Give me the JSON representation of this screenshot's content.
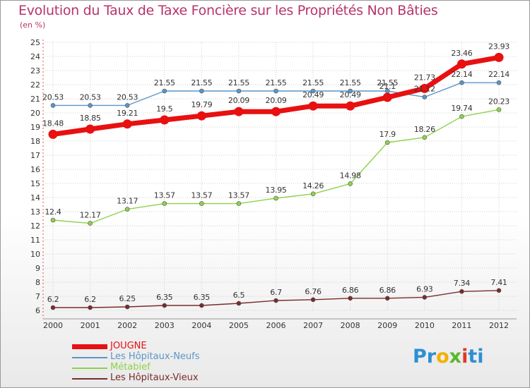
{
  "header": {
    "title": "Evolution du Taux de Taxe Foncière sur les Propriétés Non Bâties",
    "unit": "(en %)"
  },
  "logo": {
    "parts": [
      "Pr",
      "o",
      "x",
      "i",
      "ti"
    ],
    "colors": [
      "#2e8fd3",
      "#f3b000",
      "#5ab82d",
      "#e0382c",
      "#2e8fd3"
    ]
  },
  "chart_data": {
    "type": "line",
    "title": "Evolution du Taux de Taxe Foncière sur les Propriétés Non Bâties",
    "ylabel": "(en %)",
    "xlabel": "",
    "ylim": [
      6,
      25
    ],
    "yticks": [
      6,
      7,
      8,
      9,
      10,
      11,
      12,
      13,
      14,
      15,
      16,
      17,
      18,
      19,
      20,
      21,
      22,
      23,
      24,
      25
    ],
    "grid": true,
    "legend_position": "bottom-left",
    "categories": [
      "2000",
      "2001",
      "2002",
      "2003",
      "2004",
      "2005",
      "2006",
      "2007",
      "2008",
      "2009",
      "2010",
      "2011",
      "2012"
    ],
    "series": [
      {
        "name": "JOUGNE",
        "color": "#e81010",
        "emphasis": true,
        "values": [
          18.48,
          18.85,
          19.21,
          19.5,
          19.79,
          20.09,
          20.09,
          20.49,
          20.49,
          21.1,
          21.73,
          23.46,
          23.93
        ],
        "labels": [
          "18.48",
          "18.85",
          "19.21",
          "19.5",
          "19.79",
          "20.09",
          "20.09",
          "20.49",
          "20.49",
          "21.1",
          "21.73",
          "23.46",
          "23.93"
        ]
      },
      {
        "name": "Les Hôpitaux-Neufs",
        "color": "#5b95c8",
        "emphasis": false,
        "values": [
          20.53,
          20.53,
          20.53,
          21.55,
          21.55,
          21.55,
          21.55,
          21.55,
          21.55,
          21.55,
          21.12,
          22.14,
          22.14
        ],
        "labels": [
          "20.53",
          "20.53",
          "20.53",
          "21.55",
          "21.55",
          "21.55",
          "21.55",
          "21.55",
          "21.55",
          "21.55",
          "21.12",
          "22.14",
          "22.14"
        ]
      },
      {
        "name": "Métabief",
        "color": "#8ed24b",
        "emphasis": false,
        "values": [
          12.4,
          12.17,
          13.17,
          13.57,
          13.57,
          13.57,
          13.95,
          14.26,
          14.98,
          17.9,
          18.26,
          19.74,
          20.23
        ],
        "labels": [
          "12.4",
          "12.17",
          "13.17",
          "13.57",
          "13.57",
          "13.57",
          "13.95",
          "14.26",
          "14.98",
          "17.9",
          "18.26",
          "19.74",
          "20.23"
        ]
      },
      {
        "name": "Les Hôpitaux-Vieux",
        "color": "#7a2b2b",
        "emphasis": false,
        "values": [
          6.2,
          6.2,
          6.25,
          6.35,
          6.35,
          6.5,
          6.7,
          6.76,
          6.86,
          6.86,
          6.93,
          7.34,
          7.41
        ],
        "labels": [
          "6.2",
          "6.2",
          "6.25",
          "6.35",
          "6.35",
          "6.5",
          "6.7",
          "6.76",
          "6.86",
          "6.86",
          "6.93",
          "7.34",
          "7.41"
        ]
      }
    ]
  }
}
